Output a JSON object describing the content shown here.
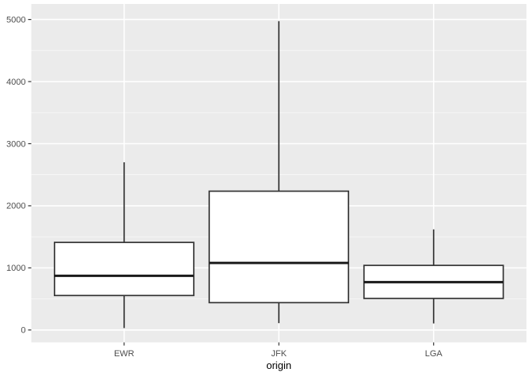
{
  "chart_data": {
    "type": "boxplot",
    "title": "",
    "xlabel": "origin",
    "ylabel": "",
    "legend": "none",
    "grid": "on",
    "theme": "ggplot-gray",
    "categories": [
      "EWR",
      "JFK",
      "LGA"
    ],
    "series": [
      {
        "name": "EWR",
        "whisker_low": 30,
        "q1": 555,
        "median": 872,
        "q3": 1410,
        "whisker_high": 2700,
        "outliers": []
      },
      {
        "name": "JFK",
        "whisker_low": 110,
        "q1": 440,
        "median": 1080,
        "q3": 2235,
        "whisker_high": 4975,
        "outliers": []
      },
      {
        "name": "LGA",
        "whisker_low": 105,
        "q1": 508,
        "median": 770,
        "q3": 1040,
        "whisker_high": 1620,
        "outliers": []
      }
    ],
    "y_axis": {
      "ticks": [
        0,
        1000,
        2000,
        3000,
        4000,
        5000
      ],
      "tick_labels": [
        "0",
        "1000",
        "2000",
        "3000",
        "4000",
        "5000"
      ],
      "minor_ticks": [
        500,
        1500,
        2500,
        3500,
        4500
      ],
      "ylim": [
        -200,
        5250
      ]
    },
    "colors": {
      "figure_background": "#FFFFFF",
      "panel_background": "#EBEBEB",
      "grid_major": "#FFFFFF",
      "grid_minor": "#FFFFFF",
      "box_fill": "#FFFFFF",
      "box_stroke": "#333333",
      "median_stroke": "#1A1A1A",
      "whisker_stroke": "#333333",
      "tick_mark": "#333333",
      "axis_text": "#4D4D4D",
      "axis_title": "#000000"
    }
  }
}
